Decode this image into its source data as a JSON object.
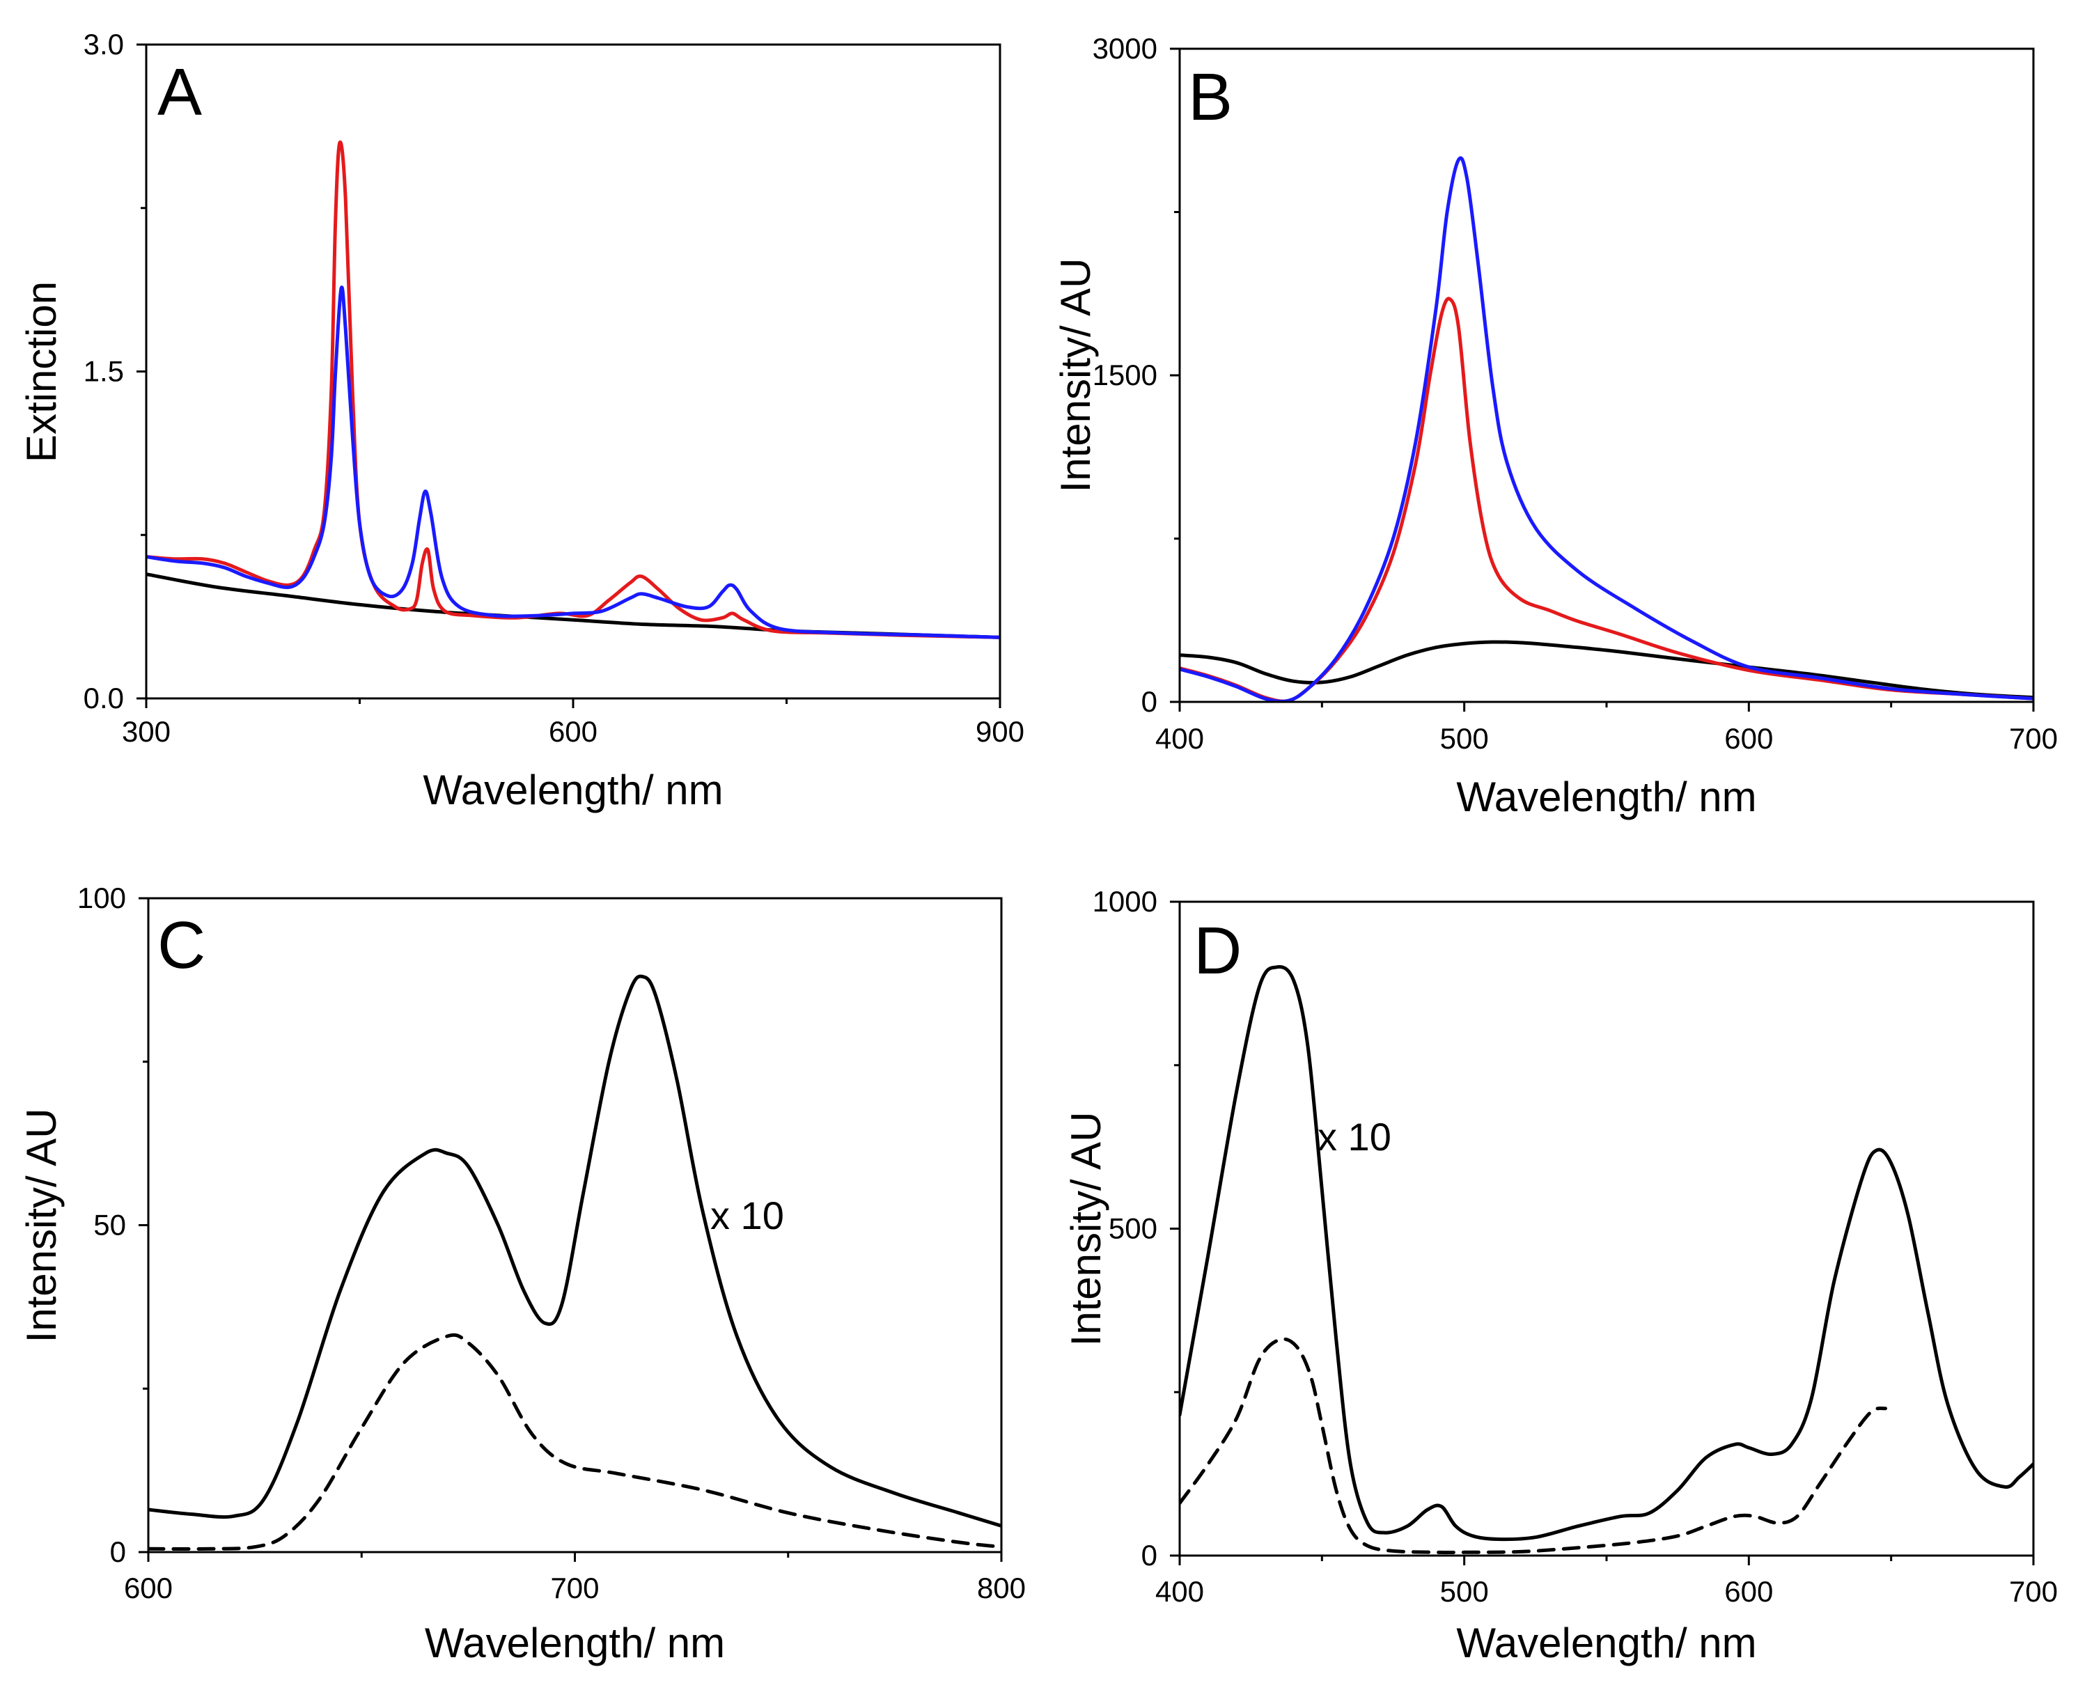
{
  "chart_data": [
    {
      "type": "line",
      "panel_label": "A",
      "xlabel": "Wavelength/ nm",
      "ylabel": "Extinction",
      "xlim": [
        300,
        900
      ],
      "ylim": [
        0,
        3
      ],
      "xticks": [
        300,
        600,
        900
      ],
      "xtick_labels": [
        "300",
        "600",
        "900"
      ],
      "yticks": [
        0,
        1.5,
        3
      ],
      "ytick_labels": [
        "0.0",
        "1.5",
        "3.0"
      ],
      "series": [
        {
          "name": "black",
          "color": "#000000",
          "dash": false,
          "x": [
            300,
            350,
            400,
            450,
            500,
            550,
            600,
            650,
            700,
            750,
            800,
            850,
            900
          ],
          "y": [
            0.57,
            0.51,
            0.47,
            0.43,
            0.4,
            0.38,
            0.36,
            0.34,
            0.33,
            0.31,
            0.3,
            0.29,
            0.28
          ]
        },
        {
          "name": "red",
          "color": "#e41a1c",
          "dash": false,
          "x": [
            300,
            320,
            340,
            355,
            370,
            385,
            400,
            410,
            418,
            425,
            430,
            433,
            436,
            440,
            445,
            450,
            460,
            475,
            485,
            490,
            494,
            498,
            502,
            510,
            530,
            560,
            590,
            610,
            625,
            640,
            648,
            660,
            675,
            690,
            705,
            712,
            720,
            740,
            780,
            830,
            900
          ],
          "y": [
            0.65,
            0.64,
            0.64,
            0.62,
            0.58,
            0.54,
            0.52,
            0.56,
            0.68,
            0.85,
            1.4,
            2.2,
            2.55,
            2.3,
            1.4,
            0.8,
            0.52,
            0.42,
            0.41,
            0.45,
            0.62,
            0.68,
            0.5,
            0.4,
            0.38,
            0.37,
            0.39,
            0.38,
            0.45,
            0.53,
            0.56,
            0.5,
            0.41,
            0.36,
            0.37,
            0.39,
            0.36,
            0.31,
            0.3,
            0.29,
            0.28
          ]
        },
        {
          "name": "blue",
          "color": "#1a1aff",
          "dash": false,
          "x": [
            300,
            320,
            340,
            355,
            370,
            385,
            400,
            410,
            418,
            425,
            430,
            433,
            437,
            440,
            445,
            450,
            458,
            470,
            480,
            487,
            492,
            496,
            500,
            508,
            520,
            545,
            575,
            600,
            620,
            640,
            648,
            660,
            680,
            695,
            705,
            710,
            715,
            725,
            745,
            790,
            850,
            900
          ],
          "y": [
            0.65,
            0.63,
            0.62,
            0.6,
            0.56,
            0.53,
            0.51,
            0.55,
            0.65,
            0.8,
            1.1,
            1.5,
            1.88,
            1.7,
            1.2,
            0.8,
            0.55,
            0.47,
            0.5,
            0.62,
            0.82,
            0.95,
            0.85,
            0.55,
            0.42,
            0.38,
            0.38,
            0.39,
            0.4,
            0.46,
            0.48,
            0.46,
            0.42,
            0.42,
            0.49,
            0.52,
            0.5,
            0.4,
            0.32,
            0.3,
            0.29,
            0.28
          ]
        }
      ]
    },
    {
      "type": "line",
      "panel_label": "B",
      "xlabel": "Wavelength/ nm",
      "ylabel": "Intensity/ AU",
      "xlim": [
        400,
        700
      ],
      "ylim": [
        0,
        3000
      ],
      "xticks": [
        400,
        500,
        600,
        700
      ],
      "xtick_labels": [
        "400",
        "500",
        "600",
        "700"
      ],
      "yticks": [
        0,
        1500,
        3000
      ],
      "ytick_labels": [
        "0",
        "1500",
        "3000"
      ],
      "series": [
        {
          "name": "black",
          "color": "#000000",
          "dash": false,
          "x": [
            400,
            410,
            420,
            430,
            440,
            450,
            460,
            470,
            480,
            490,
            500,
            510,
            520,
            530,
            540,
            550,
            560,
            580,
            600,
            620,
            640,
            660,
            680,
            700
          ],
          "y": [
            215,
            205,
            180,
            130,
            95,
            90,
            115,
            165,
            215,
            250,
            268,
            275,
            272,
            262,
            250,
            237,
            222,
            190,
            160,
            130,
            95,
            60,
            35,
            20
          ]
        },
        {
          "name": "red",
          "color": "#e41a1c",
          "dash": false,
          "x": [
            400,
            410,
            420,
            430,
            438,
            445,
            455,
            465,
            475,
            483,
            488,
            492,
            495,
            498,
            502,
            507,
            512,
            520,
            530,
            540,
            555,
            575,
            600,
            625,
            650,
            675,
            700
          ],
          "y": [
            155,
            120,
            75,
            20,
            5,
            60,
            190,
            380,
            680,
            1100,
            1500,
            1780,
            1850,
            1720,
            1200,
            780,
            580,
            470,
            420,
            370,
            310,
            225,
            145,
            100,
            55,
            35,
            15
          ]
        },
        {
          "name": "blue",
          "color": "#1a1aff",
          "dash": false,
          "x": [
            400,
            410,
            420,
            430,
            438,
            445,
            455,
            465,
            475,
            483,
            490,
            494,
            498,
            501,
            505,
            510,
            515,
            525,
            540,
            560,
            580,
            600,
            625,
            650,
            675,
            700
          ],
          "y": [
            150,
            115,
            70,
            15,
            5,
            60,
            200,
            420,
            750,
            1200,
            1800,
            2250,
            2490,
            2400,
            2000,
            1450,
            1100,
            800,
            600,
            430,
            280,
            160,
            110,
            60,
            35,
            15
          ]
        }
      ]
    },
    {
      "type": "line",
      "panel_label": "C",
      "xlabel": "Wavelength/ nm",
      "ylabel": "Intensity/ AU",
      "xlim": [
        600,
        800
      ],
      "ylim": [
        0,
        100
      ],
      "xticks": [
        600,
        700,
        800
      ],
      "xtick_labels": [
        "600",
        "700",
        "800"
      ],
      "yticks": [
        0,
        50,
        100
      ],
      "ytick_labels": [
        "0",
        "50",
        "100"
      ],
      "annotation": "x 10",
      "series": [
        {
          "name": "solid",
          "color": "#000000",
          "dash": false,
          "x": [
            600,
            610,
            620,
            627,
            635,
            645,
            655,
            665,
            670,
            675,
            682,
            688,
            693,
            697,
            702,
            708,
            713,
            716,
            719,
            724,
            730,
            738,
            748,
            760,
            775,
            790,
            800
          ],
          "y": [
            6.5,
            5.8,
            5.5,
            8,
            20,
            40,
            55,
            61,
            61,
            59,
            50,
            40,
            35,
            38,
            55,
            75,
            86,
            88,
            85,
            72,
            52,
            33,
            20,
            13,
            9,
            6,
            4
          ]
        },
        {
          "name": "dashed",
          "color": "#000000",
          "dash": true,
          "x": [
            600,
            615,
            625,
            632,
            640,
            650,
            660,
            670,
            675,
            682,
            690,
            698,
            710,
            730,
            750,
            770,
            790,
            800
          ],
          "y": [
            0.5,
            0.5,
            0.8,
            2.5,
            8,
            19,
            29,
            33,
            32,
            27,
            18,
            13.5,
            12,
            9.5,
            6,
            3.5,
            1.5,
            0.8
          ]
        }
      ]
    },
    {
      "type": "line",
      "panel_label": "D",
      "xlabel": "Wavelength/ nm",
      "ylabel": "Intensity/ AU",
      "xlim": [
        400,
        700
      ],
      "ylim": [
        0,
        1000
      ],
      "xticks": [
        400,
        500,
        600,
        700
      ],
      "xtick_labels": [
        "400",
        "500",
        "600",
        "700"
      ],
      "yticks": [
        0,
        500,
        1000
      ],
      "ytick_labels": [
        "0",
        "500",
        "1000"
      ],
      "annotation": "x 10",
      "series": [
        {
          "name": "solid",
          "color": "#000000",
          "dash": false,
          "x": [
            400,
            410,
            420,
            428,
            434,
            440,
            445,
            450,
            455,
            460,
            466,
            472,
            480,
            487,
            492,
            497,
            503,
            512,
            525,
            540,
            555,
            565,
            575,
            585,
            595,
            600,
            608,
            615,
            622,
            630,
            640,
            645,
            650,
            656,
            663,
            670,
            680,
            690,
            695,
            700
          ],
          "y": [
            215,
            460,
            710,
            870,
            900,
            880,
            780,
            560,
            330,
            140,
            50,
            35,
            45,
            70,
            75,
            45,
            30,
            25,
            28,
            45,
            60,
            65,
            100,
            150,
            170,
            165,
            155,
            170,
            240,
            420,
            580,
            620,
            600,
            520,
            370,
            230,
            130,
            105,
            120,
            140
          ]
        },
        {
          "name": "dashed",
          "color": "#000000",
          "dash": true,
          "x": [
            400,
            410,
            420,
            428,
            435,
            441,
            446,
            450,
            455,
            460,
            466,
            475,
            490,
            500,
            520,
            540,
            560,
            575,
            585,
            595,
            602,
            610,
            617,
            625,
            635,
            643,
            648
          ],
          "y": [
            80,
            140,
            210,
            300,
            330,
            320,
            275,
            200,
            100,
            40,
            15,
            7,
            5,
            5,
            6,
            12,
            20,
            30,
            45,
            60,
            60,
            50,
            60,
            110,
            175,
            220,
            225
          ]
        }
      ]
    }
  ]
}
